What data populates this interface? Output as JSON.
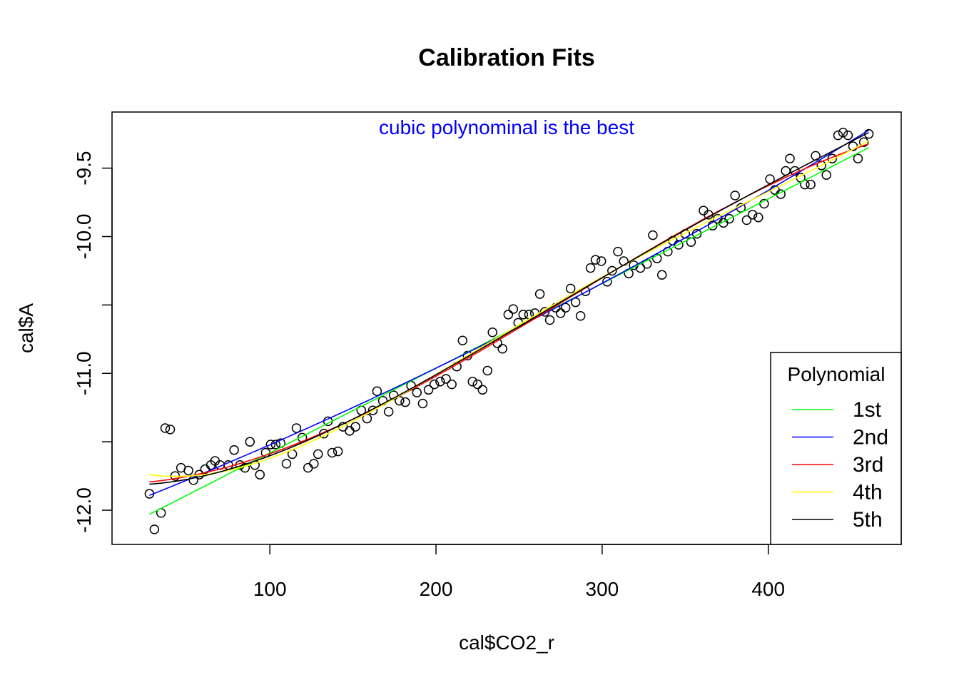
{
  "chart_data": {
    "type": "scatter",
    "title": "Calibration Fits",
    "xlabel": "cal$CO2_r",
    "ylabel": "cal$A",
    "xlim": [
      5,
      480
    ],
    "ylim": [
      -12.25,
      -9.09
    ],
    "x_ticks": [
      100,
      200,
      300,
      400
    ],
    "x_tick_labels": [
      "100",
      "200",
      "300",
      "400"
    ],
    "y_ticks": [
      -12.0,
      -11.5,
      -11.0,
      -10.5,
      -10.0,
      -9.5
    ],
    "y_tick_labels": [
      "-12.0",
      "",
      "-11.0",
      "",
      "-10.0",
      "-9.5"
    ],
    "annotation": {
      "text": "cubic polynominal is the best",
      "color": "#0000ff"
    },
    "points": [
      [
        27.5,
        -11.88
      ],
      [
        30.5,
        -12.14
      ],
      [
        34.5,
        -12.02
      ],
      [
        37.0,
        -11.4
      ],
      [
        40.0,
        -11.41
      ],
      [
        43.0,
        -11.75
      ],
      [
        46.5,
        -11.69
      ],
      [
        51.0,
        -11.71
      ],
      [
        54.0,
        -11.78
      ],
      [
        57.5,
        -11.74
      ],
      [
        61.0,
        -11.7
      ],
      [
        64.5,
        -11.67
      ],
      [
        67.0,
        -11.64
      ],
      [
        70.0,
        -11.67
      ],
      [
        75.0,
        -11.67
      ],
      [
        78.5,
        -11.56
      ],
      [
        82.0,
        -11.67
      ],
      [
        85.0,
        -11.69
      ],
      [
        88.0,
        -11.5
      ],
      [
        91.0,
        -11.67
      ],
      [
        94.0,
        -11.74
      ],
      [
        97.5,
        -11.58
      ],
      [
        100.5,
        -11.52
      ],
      [
        103.5,
        -11.52
      ],
      [
        106.5,
        -11.51
      ],
      [
        110.0,
        -11.66
      ],
      [
        113.5,
        -11.59
      ],
      [
        116.0,
        -11.4
      ],
      [
        119.5,
        -11.47
      ],
      [
        123.0,
        -11.69
      ],
      [
        126.5,
        -11.66
      ],
      [
        129.0,
        -11.59
      ],
      [
        132.5,
        -11.44
      ],
      [
        135.0,
        -11.35
      ],
      [
        137.5,
        -11.58
      ],
      [
        141.0,
        -11.57
      ],
      [
        144.0,
        -11.39
      ],
      [
        148.0,
        -11.42
      ],
      [
        151.5,
        -11.39
      ],
      [
        155.0,
        -11.27
      ],
      [
        158.5,
        -11.33
      ],
      [
        162.0,
        -11.27
      ],
      [
        164.5,
        -11.13
      ],
      [
        168.0,
        -11.2
      ],
      [
        171.5,
        -11.28
      ],
      [
        174.5,
        -11.16
      ],
      [
        178.0,
        -11.2
      ],
      [
        181.5,
        -11.21
      ],
      [
        185.0,
        -11.09
      ],
      [
        188.5,
        -11.14
      ],
      [
        192.0,
        -11.22
      ],
      [
        195.5,
        -11.12
      ],
      [
        199.0,
        -11.08
      ],
      [
        202.5,
        -11.06
      ],
      [
        206.0,
        -11.04
      ],
      [
        209.5,
        -11.08
      ],
      [
        212.5,
        -10.95
      ],
      [
        216.0,
        -10.76
      ],
      [
        219.0,
        -10.87
      ],
      [
        222.0,
        -11.06
      ],
      [
        225.0,
        -11.08
      ],
      [
        228.0,
        -11.12
      ],
      [
        231.0,
        -10.98
      ],
      [
        234.0,
        -10.7
      ],
      [
        237.0,
        -10.78
      ],
      [
        240.0,
        -10.82
      ],
      [
        243.5,
        -10.57
      ],
      [
        246.5,
        -10.53
      ],
      [
        249.5,
        -10.63
      ],
      [
        252.5,
        -10.57
      ],
      [
        256.0,
        -10.57
      ],
      [
        259.5,
        -10.56
      ],
      [
        262.5,
        -10.42
      ],
      [
        265.5,
        -10.55
      ],
      [
        268.5,
        -10.61
      ],
      [
        272.0,
        -10.52
      ],
      [
        275.0,
        -10.56
      ],
      [
        278.0,
        -10.52
      ],
      [
        281.0,
        -10.38
      ],
      [
        284.0,
        -10.48
      ],
      [
        287.0,
        -10.58
      ],
      [
        290.0,
        -10.4
      ],
      [
        293.0,
        -10.23
      ],
      [
        296.0,
        -10.17
      ],
      [
        299.5,
        -10.18
      ],
      [
        303.0,
        -10.33
      ],
      [
        306.0,
        -10.25
      ],
      [
        309.5,
        -10.11
      ],
      [
        313.0,
        -10.18
      ],
      [
        316.0,
        -10.27
      ],
      [
        319.0,
        -10.21
      ],
      [
        323.0,
        -10.23
      ],
      [
        327.0,
        -10.2
      ],
      [
        330.5,
        -9.99
      ],
      [
        333.0,
        -10.16
      ],
      [
        336.0,
        -10.28
      ],
      [
        339.5,
        -10.11
      ],
      [
        342.5,
        -10.03
      ],
      [
        346.0,
        -10.06
      ],
      [
        350.0,
        -9.98
      ],
      [
        353.5,
        -10.04
      ],
      [
        357.0,
        -9.98
      ],
      [
        361.0,
        -9.81
      ],
      [
        364.0,
        -9.84
      ],
      [
        366.5,
        -9.92
      ],
      [
        369.5,
        -9.87
      ],
      [
        373.0,
        -9.9
      ],
      [
        376.5,
        -9.87
      ],
      [
        380.0,
        -9.7
      ],
      [
        383.5,
        -9.79
      ],
      [
        387.0,
        -9.88
      ],
      [
        390.5,
        -9.84
      ],
      [
        394.0,
        -9.86
      ],
      [
        397.5,
        -9.76
      ],
      [
        401.0,
        -9.58
      ],
      [
        404.0,
        -9.66
      ],
      [
        407.5,
        -9.69
      ],
      [
        410.5,
        -9.52
      ],
      [
        413.0,
        -9.43
      ],
      [
        416.0,
        -9.52
      ],
      [
        419.5,
        -9.57
      ],
      [
        422.0,
        -9.62
      ],
      [
        425.5,
        -9.62
      ],
      [
        428.5,
        -9.41
      ],
      [
        432.0,
        -9.48
      ],
      [
        435.0,
        -9.55
      ],
      [
        438.5,
        -9.43
      ],
      [
        442.0,
        -9.26
      ],
      [
        445.0,
        -9.24
      ],
      [
        448.0,
        -9.26
      ],
      [
        451.0,
        -9.34
      ],
      [
        454.0,
        -9.43
      ],
      [
        457.5,
        -9.31
      ],
      [
        460.5,
        -9.25
      ]
    ],
    "series": [
      {
        "name": "1st",
        "color": "#00ff00",
        "degree": 1,
        "x": [
          27.5,
          460.5
        ],
        "y": [
          -12.03,
          -9.35
        ]
      },
      {
        "name": "2nd",
        "color": "#0000ff",
        "degree": 2,
        "x": [
          27.5,
          130,
          230,
          330,
          460.5
        ],
        "y": [
          -11.87,
          -11.4,
          -10.79,
          -10.1,
          -9.24
        ]
      },
      {
        "name": "3rd",
        "color": "#ff0000",
        "degree": 3,
        "x": [
          27.5,
          130,
          230,
          330,
          460.5
        ],
        "y": [
          -11.79,
          -11.46,
          -10.79,
          -10.1,
          -9.32
        ]
      },
      {
        "name": "4th",
        "color": "#ffff00",
        "degree": 4,
        "x": [
          27.5,
          130,
          230,
          330,
          460.5
        ],
        "y": [
          -11.74,
          -11.47,
          -10.79,
          -10.1,
          -9.3
        ]
      },
      {
        "name": "5th",
        "color": "#000000",
        "degree": 5,
        "x": [
          27.5,
          130,
          230,
          330,
          460.5
        ],
        "y": [
          -11.81,
          -11.45,
          -10.8,
          -10.09,
          -9.24
        ]
      }
    ],
    "legend": {
      "title": "Polynomial",
      "position": "bottom-right",
      "entries": [
        "1st",
        "2nd",
        "3rd",
        "4th",
        "5th"
      ]
    },
    "grid": false
  }
}
